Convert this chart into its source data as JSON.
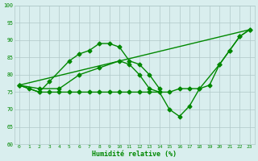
{
  "xlabel": "Humidité relative (%)",
  "xlim": [
    -0.5,
    23.5
  ],
  "ylim": [
    60,
    100
  ],
  "yticks": [
    60,
    65,
    70,
    75,
    80,
    85,
    90,
    95,
    100
  ],
  "xticks": [
    0,
    1,
    2,
    3,
    4,
    5,
    6,
    7,
    8,
    9,
    10,
    11,
    12,
    13,
    14,
    15,
    16,
    17,
    18,
    19,
    20,
    21,
    22,
    23
  ],
  "bg_color": "#d9eeee",
  "grid_color": "#b0c8c8",
  "line_color": "#008800",
  "lines": [
    {
      "x": [
        0,
        23
      ],
      "y": [
        77,
        93
      ],
      "marker": null,
      "markersize": 0,
      "linewidth": 1.0
    },
    {
      "x": [
        0,
        2,
        3,
        5,
        6,
        7,
        8,
        9,
        10,
        11,
        12,
        13,
        14
      ],
      "y": [
        77,
        75,
        78,
        84,
        86,
        87,
        89,
        89,
        88,
        84,
        83,
        80,
        76
      ],
      "marker": "D",
      "markersize": 2.5,
      "linewidth": 1.0
    },
    {
      "x": [
        0,
        2,
        4,
        6,
        8,
        10,
        11,
        12,
        13,
        14,
        15,
        16,
        17,
        18,
        19,
        20,
        21,
        22,
        23
      ],
      "y": [
        77,
        76,
        76,
        80,
        82,
        84,
        83,
        80,
        76,
        75,
        70,
        68,
        71,
        76,
        77,
        83,
        87,
        91,
        93
      ],
      "marker": "D",
      "markersize": 2.5,
      "linewidth": 1.0
    },
    {
      "x": [
        0,
        1,
        2,
        3,
        4,
        5,
        6,
        7,
        8,
        9,
        10,
        11,
        12,
        13,
        14,
        15,
        16,
        17,
        18,
        20,
        21,
        22,
        23
      ],
      "y": [
        77,
        76,
        75,
        75,
        75,
        75,
        75,
        75,
        75,
        75,
        75,
        75,
        75,
        75,
        75,
        75,
        76,
        76,
        76,
        83,
        87,
        91,
        93
      ],
      "marker": "D",
      "markersize": 2.5,
      "linewidth": 1.0
    }
  ]
}
